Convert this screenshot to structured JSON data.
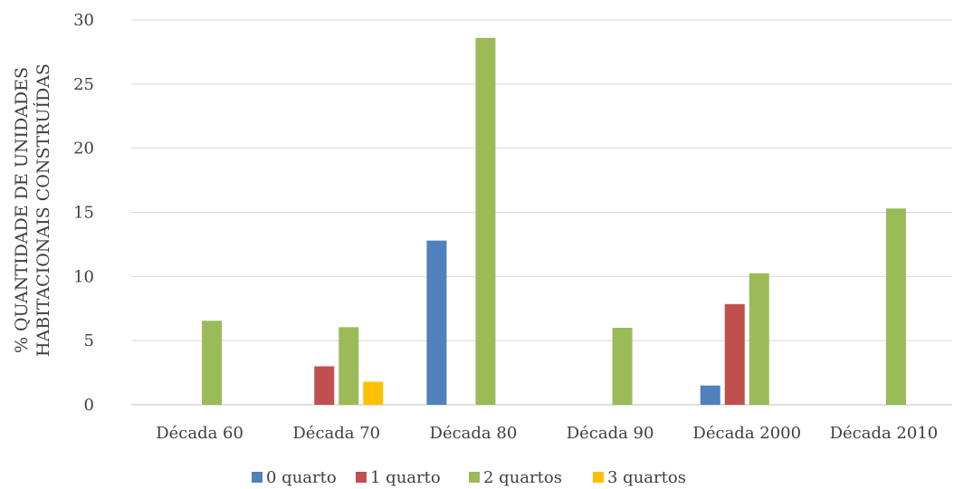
{
  "chart_data": {
    "type": "bar",
    "ylabel_lines": [
      "% QUANTIDADE DE UNIDADES",
      "HABITACIONAIS CONSTRUÍDAS"
    ],
    "ylim": [
      0,
      30
    ],
    "yticks": [
      "0",
      "5",
      "10",
      "15",
      "20",
      "25",
      "30"
    ],
    "ytick_values": [
      0,
      5,
      10,
      15,
      20,
      25,
      30
    ],
    "grid": true,
    "legend_position": "bottom",
    "categories": [
      "Década 60",
      "Década 70",
      "Década 80",
      "Década 90",
      "Década 2000",
      "Década 2010"
    ],
    "series": [
      {
        "name": "0 quarto",
        "color": "#4f81bd",
        "values": [
          0,
          0,
          12.8,
          0,
          1.5,
          0
        ]
      },
      {
        "name": "1 quarto",
        "color": "#c0504d",
        "values": [
          0,
          3.0,
          0,
          0,
          7.85,
          0
        ]
      },
      {
        "name": "2 quartos",
        "color": "#9bbb59",
        "values": [
          6.55,
          6.05,
          28.6,
          6.0,
          10.25,
          15.3
        ]
      },
      {
        "name": "3 quartos",
        "color": "#ffc000",
        "values": [
          0,
          1.8,
          0,
          0,
          0,
          0
        ]
      }
    ]
  }
}
